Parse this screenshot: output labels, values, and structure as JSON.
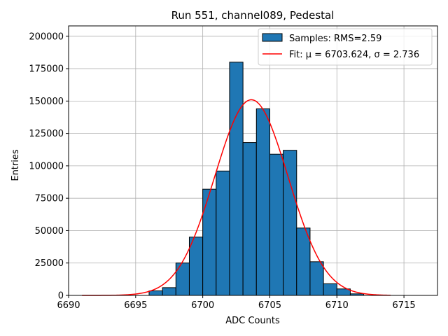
{
  "chart_data": {
    "type": "bar",
    "title": "Run 551, channel089, Pedestal",
    "xlabel": "ADC Counts",
    "ylabel": "Entries",
    "xlim": [
      6690,
      6717.5
    ],
    "ylim": [
      0,
      208000
    ],
    "xticks": [
      6690,
      6695,
      6700,
      6705,
      6710,
      6715
    ],
    "yticks": [
      0,
      25000,
      50000,
      75000,
      100000,
      125000,
      150000,
      175000,
      200000
    ],
    "grid": true,
    "legend_position": "top-right",
    "colors": {
      "bars": "#1f77b4",
      "bar_edge": "#000000",
      "fit": "#ff0000"
    },
    "histogram": {
      "name": "Samples: RMS=2.59",
      "bin_edges": [
        6696,
        6697,
        6698,
        6699,
        6700,
        6701,
        6702,
        6703,
        6704,
        6705,
        6706,
        6707,
        6708,
        6709,
        6710,
        6711,
        6712
      ],
      "counts": [
        3500,
        6000,
        25000,
        45000,
        82000,
        96000,
        180000,
        118000,
        144000,
        109000,
        112000,
        52000,
        26000,
        9000,
        5000,
        1200
      ]
    },
    "fit": {
      "name": "Fit: μ = 6703.624, σ = 2.736",
      "mu": 6703.624,
      "sigma": 2.736,
      "amplitude": 151000,
      "x_range": [
        6691,
        6714
      ]
    }
  }
}
